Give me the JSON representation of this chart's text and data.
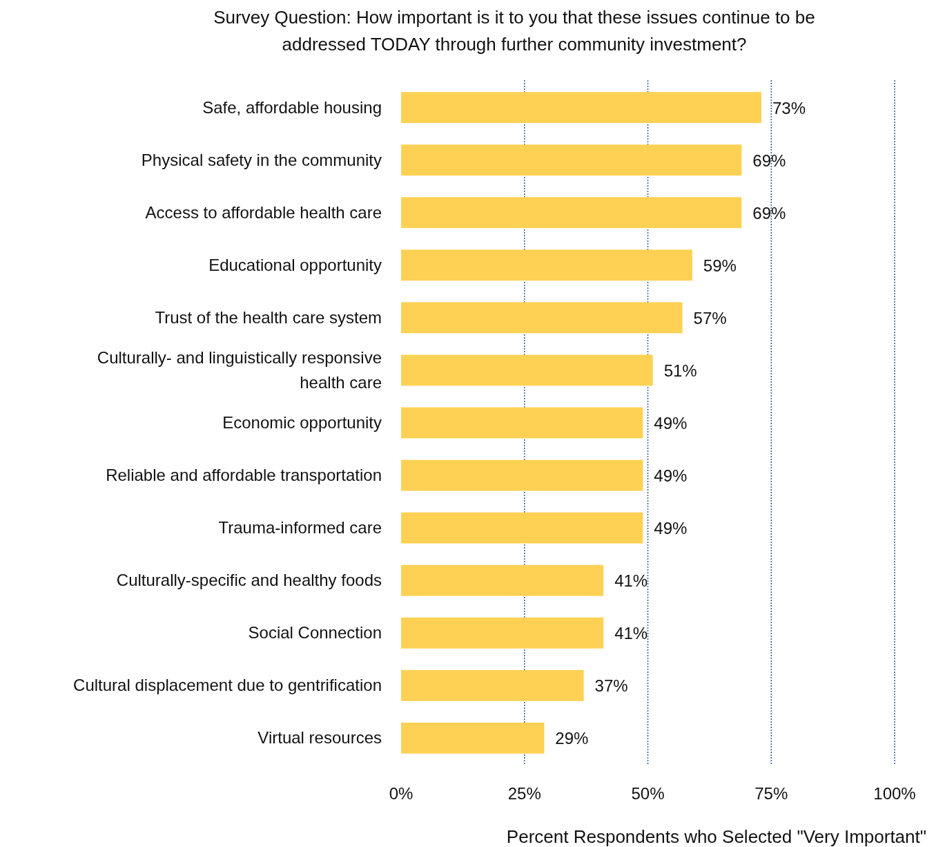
{
  "chart_data": {
    "type": "bar",
    "orientation": "horizontal",
    "title": "Survey Question: How important is it to you that these issues continue to be addressed TODAY through further community investment?",
    "xlabel": "Percent Respondents who Selected \"Very Important\"",
    "categories": [
      "Safe, affordable housing",
      "Physical safety in the community",
      "Access to affordable health care",
      "Educational opportunity",
      "Trust of the health care system",
      "Culturally- and linguistically responsive health care",
      "Economic opportunity",
      "Reliable and affordable transportation",
      "Trauma-informed care",
      "Culturally-specific and healthy foods",
      "Social Connection",
      "Cultural displacement due to gentrification",
      "Virtual resources"
    ],
    "values": [
      73,
      69,
      69,
      59,
      57,
      51,
      49,
      49,
      49,
      41,
      41,
      37,
      29
    ],
    "color": "#fed154",
    "value_labels": [
      "73%",
      "69%",
      "69%",
      "59%",
      "57%",
      "51%",
      "49%",
      "49%",
      "49%",
      "41%",
      "41%",
      "37%",
      "29%"
    ],
    "xlim": [
      0,
      100
    ],
    "xticks": [
      {
        "value": 0,
        "label": "0%"
      },
      {
        "value": 25,
        "label": "25%"
      },
      {
        "value": 50,
        "label": "50%"
      },
      {
        "value": 75,
        "label": "75%"
      },
      {
        "value": 100,
        "label": "100%"
      }
    ],
    "grid": "x"
  }
}
